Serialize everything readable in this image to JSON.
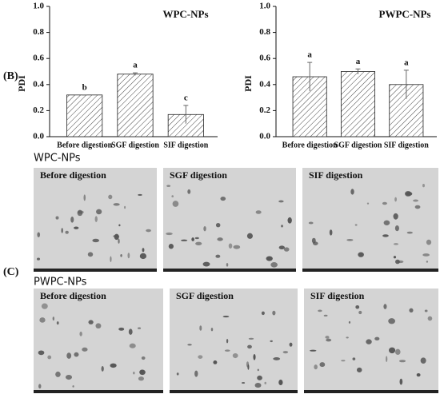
{
  "chart_data": [
    {
      "type": "bar",
      "title": "WPC-NPs",
      "y_label": "PDI",
      "categories": [
        "Before digestion",
        "SGF digestion",
        "SIF digestion"
      ],
      "values": [
        0.32,
        0.48,
        0.17
      ],
      "errors": [
        0.0,
        0.01,
        0.07
      ],
      "letters": [
        "b",
        "a",
        "c"
      ],
      "ylim": [
        0,
        1.0
      ],
      "yticks": [
        {
          "value": 0,
          "label": "0.0"
        },
        0.2,
        0.4,
        0.6,
        0.8,
        {
          "value": 1.0,
          "label": "1.0"
        }
      ],
      "color": "#555555",
      "hatch": true
    },
    {
      "type": "bar",
      "title": "PWPC-NPs",
      "y_label": "PDI",
      "categories": [
        "Before digestion",
        "SGF digestion",
        "SIF digestion"
      ],
      "values": [
        0.46,
        0.5,
        0.4
      ],
      "errors": [
        0.11,
        0.02,
        0.11
      ],
      "letters": [
        "a",
        "a",
        "a"
      ],
      "ylim": [
        0,
        1.0
      ],
      "yticks": [
        {
          "value": 0,
          "label": "0.0"
        },
        0.2,
        0.4,
        0.6,
        0.8,
        {
          "value": 1.0,
          "label": "1.0"
        }
      ],
      "color": "#555555",
      "hatch": true
    }
  ],
  "figure": {
    "panel_labels": [
      "(B)",
      "(C)"
    ],
    "image_groups": [
      {
        "title": "WPC-NPs",
        "panels": [
          "Before digestion",
          "SGF digestion",
          "SIF digestion"
        ]
      },
      {
        "title": "PWPC-NPs",
        "panels": [
          "Before digestion",
          "SGF digestion",
          "SIF digestion"
        ]
      }
    ]
  }
}
